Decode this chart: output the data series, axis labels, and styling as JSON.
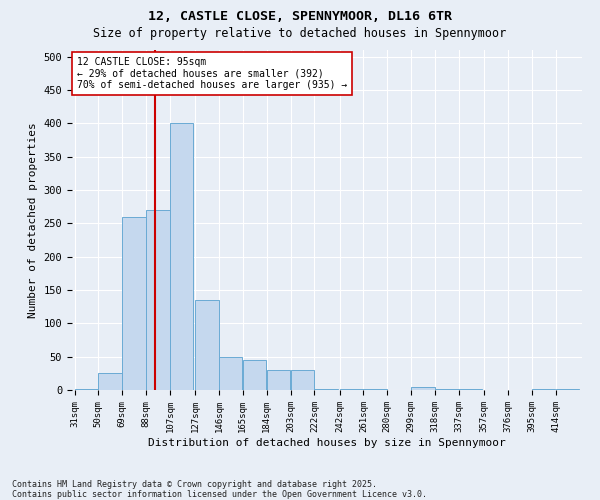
{
  "title1": "12, CASTLE CLOSE, SPENNYMOOR, DL16 6TR",
  "title2": "Size of property relative to detached houses in Spennymoor",
  "xlabel": "Distribution of detached houses by size in Spennymoor",
  "ylabel": "Number of detached properties",
  "bins": [
    31,
    50,
    69,
    88,
    107,
    127,
    146,
    165,
    184,
    203,
    222,
    242,
    261,
    280,
    299,
    318,
    337,
    357,
    376,
    395,
    414
  ],
  "counts": [
    2,
    25,
    260,
    270,
    400,
    135,
    50,
    45,
    30,
    30,
    2,
    1,
    1,
    0,
    5,
    1,
    1,
    0,
    0,
    1,
    1
  ],
  "bar_color": "#c5d8ee",
  "bar_edge_color": "#6aaad4",
  "property_size": 95,
  "vline_color": "#cc0000",
  "annotation_line1": "12 CASTLE CLOSE: 95sqm",
  "annotation_line2": "← 29% of detached houses are smaller (392)",
  "annotation_line3": "70% of semi-detached houses are larger (935) →",
  "ylim_max": 510,
  "yticks": [
    0,
    50,
    100,
    150,
    200,
    250,
    300,
    350,
    400,
    450,
    500
  ],
  "bg_color": "#e8eef6",
  "grid_color": "#ffffff",
  "footer": "Contains HM Land Registry data © Crown copyright and database right 2025.\nContains public sector information licensed under the Open Government Licence v3.0."
}
